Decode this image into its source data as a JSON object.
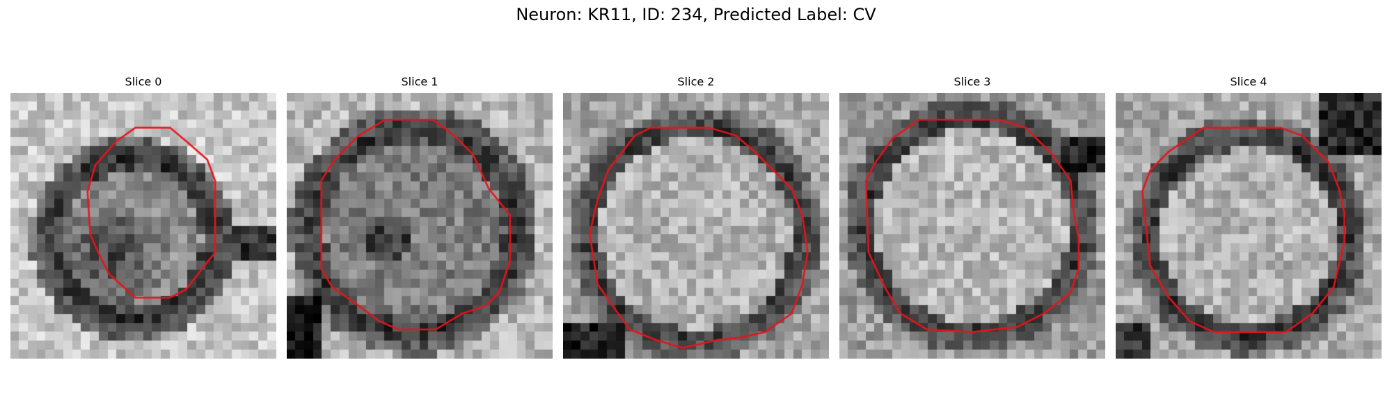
{
  "figure": {
    "suptitle": "Neuron: KR11, ID: 234, Predicted Label: CV"
  },
  "colors": {
    "background": "#ffffff",
    "contour": "#e8141a",
    "image_colormap": "gray"
  },
  "panels": [
    {
      "title": "Slice 0",
      "icon": "microscopy-slice-with-red-contour"
    },
    {
      "title": "Slice 1",
      "icon": "microscopy-slice-with-red-contour"
    },
    {
      "title": "Slice 2",
      "icon": "microscopy-slice-with-red-contour"
    },
    {
      "title": "Slice 3",
      "icon": "microscopy-slice-with-red-contour"
    },
    {
      "title": "Slice 4",
      "icon": "microscopy-slice-with-red-contour"
    }
  ]
}
